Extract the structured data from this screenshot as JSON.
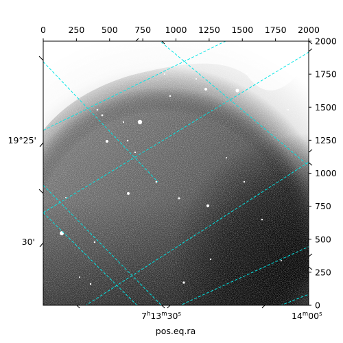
{
  "figure": {
    "xlabel": "pos.eq.ra",
    "top_ticks": [
      "0",
      "250",
      "500",
      "750",
      "1000",
      "1250",
      "1500",
      "1750",
      "2000"
    ],
    "right_ticks": [
      "0",
      "250",
      "500",
      "750",
      "1000",
      "1250",
      "1500",
      "1750",
      "2000"
    ],
    "left_labels": [
      "19°25'",
      "30'"
    ],
    "bottom_label_ra1": {
      "h": "7",
      "m": "13",
      "s": "30"
    },
    "bottom_label_ra2": {
      "m": "14",
      "s": "00"
    },
    "colors": {
      "grid": "#00e5e5",
      "frame": "#000000"
    }
  }
}
